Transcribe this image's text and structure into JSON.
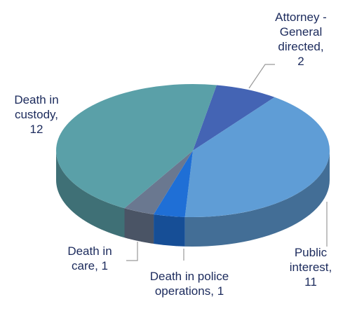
{
  "chart_data": {
    "type": "pie3d",
    "categories": [
      "Attorney -General directed",
      "Public interest",
      "Death in police operations",
      "Death in care",
      "Death in custody"
    ],
    "values": [
      2,
      11,
      1,
      1,
      12
    ],
    "colors": [
      "#4464b4",
      "#5f9dd6",
      "#1f6fd6",
      "#6a7890",
      "#5aa0a8"
    ]
  }
}
